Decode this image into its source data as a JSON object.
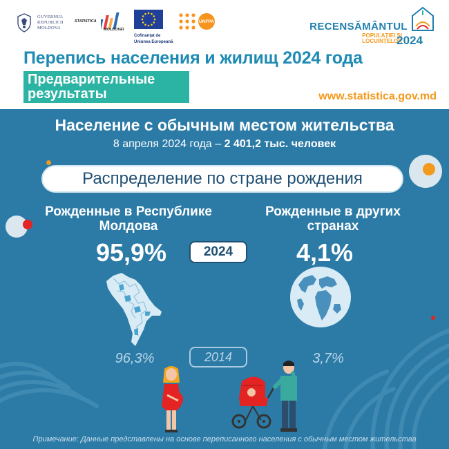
{
  "logos": {
    "gov_lines": [
      "GUVERNUL",
      "REPUBLICII",
      "MOLDOVA"
    ],
    "stat_name_1": "STATISTICA",
    "stat_name_2": "MOLDOVEI",
    "eu_caption_1": "Cofinanțat de",
    "eu_caption_2": "Uniunea Europeană",
    "unfpa": "UNFPA",
    "recens_title": "RECENSĂMÂNTUL",
    "recens_sub_1": "POPULAȚIEI ȘI",
    "recens_sub_2": "LOCUINȚELOR",
    "recens_year": "2024"
  },
  "header": {
    "title": "Перепись населения и жилищ 2024 года",
    "preliminary": "Предварительные результаты",
    "website": "www.statistica.gov.md"
  },
  "population": {
    "title": "Население с обычным местом жительства",
    "date_text": "8 апреля 2024 года –",
    "value_text": "2 401,2  тыс. человек"
  },
  "section_title": "Распределение по стране рождения",
  "chart_data": {
    "type": "table",
    "categories": [
      "Рожденные в Республике Молдова",
      "Рожденные в других странах"
    ],
    "series": [
      {
        "name": "2024",
        "values": [
          95.9,
          4.1
        ]
      },
      {
        "name": "2014",
        "values": [
          96.3,
          3.7
        ]
      }
    ],
    "labels": {
      "left": "Рожденные в Республике Молдова",
      "right": "Рожденные в других странах",
      "left_2024": "95,9%",
      "right_2024": "4,1%",
      "left_2014": "96,3%",
      "right_2014": "3,7%",
      "year_current": "2024",
      "year_previous": "2014"
    }
  },
  "footnote": "Примечание: Данные представлены на основе переписанного населения с обычным местом жительства",
  "colors": {
    "panel_blue": "#2c7ba7",
    "title_blue": "#1d8bb3",
    "teal": "#2bb3a3",
    "orange": "#f39a1e",
    "red": "#e42323"
  }
}
